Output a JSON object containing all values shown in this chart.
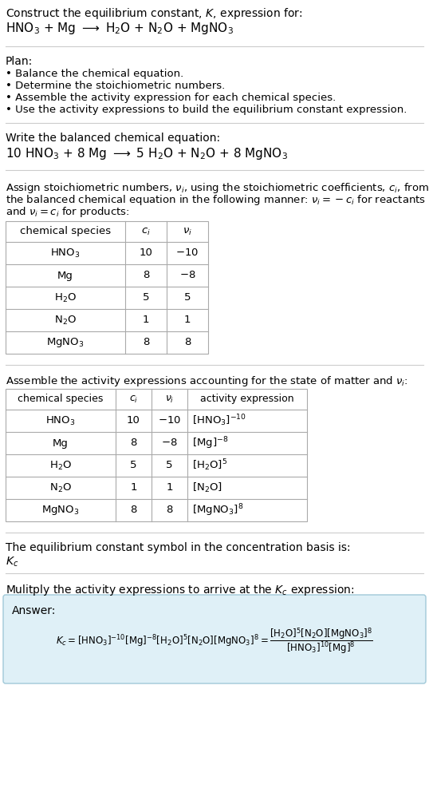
{
  "bg_color": "#ffffff",
  "text_color": "#000000",
  "section_bg": "#dff0f7",
  "table_border_color": "#aaaaaa",
  "title_text": "Construct the equilibrium constant, $K$, expression for:",
  "reaction_unbalanced": "HNO$_3$ + Mg $\\longrightarrow$ H$_2$O + N$_2$O + MgNO$_3$",
  "plan_header": "Plan:",
  "plan_items": [
    "• Balance the chemical equation.",
    "• Determine the stoichiometric numbers.",
    "• Assemble the activity expression for each chemical species.",
    "• Use the activity expressions to build the equilibrium constant expression."
  ],
  "balanced_header": "Write the balanced chemical equation:",
  "balanced_eq": "10 HNO$_3$ + 8 Mg $\\longrightarrow$ 5 H$_2$O + N$_2$O + 8 MgNO$_3$",
  "stoich_header_parts": [
    "Assign stoichiometric numbers, $\\nu_i$, using the stoichiometric coefficients, $c_i$, from",
    "the balanced chemical equation in the following manner: $\\nu_i = -c_i$ for reactants",
    "and $\\nu_i = c_i$ for products:"
  ],
  "table1_col_labels": [
    "chemical species",
    "$c_i$",
    "$\\nu_i$"
  ],
  "table1_rows": [
    [
      "HNO$_3$",
      "10",
      "$-10$"
    ],
    [
      "Mg",
      "8",
      "$-8$"
    ],
    [
      "H$_2$O",
      "5",
      "5"
    ],
    [
      "N$_2$O",
      "1",
      "1"
    ],
    [
      "MgNO$_3$",
      "8",
      "8"
    ]
  ],
  "activity_header": "Assemble the activity expressions accounting for the state of matter and $\\nu_i$:",
  "table2_col_labels": [
    "chemical species",
    "$c_i$",
    "$\\nu_i$",
    "activity expression"
  ],
  "table2_rows": [
    [
      "HNO$_3$",
      "10",
      "$-10$",
      "$[\\mathrm{HNO_3}]^{-10}$"
    ],
    [
      "Mg",
      "8",
      "$-8$",
      "$[\\mathrm{Mg}]^{-8}$"
    ],
    [
      "H$_2$O",
      "5",
      "5",
      "$[\\mathrm{H_2O}]^5$"
    ],
    [
      "N$_2$O",
      "1",
      "1",
      "$[\\mathrm{N_2O}]$"
    ],
    [
      "MgNO$_3$",
      "8",
      "8",
      "$[\\mathrm{MgNO_3}]^8$"
    ]
  ],
  "kc_header": "The equilibrium constant symbol in the concentration basis is:",
  "kc_symbol": "$K_c$",
  "multiply_header": "Mulitply the activity expressions to arrive at the $K_c$ expression:",
  "answer_label": "Answer:",
  "sep_color": "#cccccc",
  "table_line_color": "#aaaaaa"
}
